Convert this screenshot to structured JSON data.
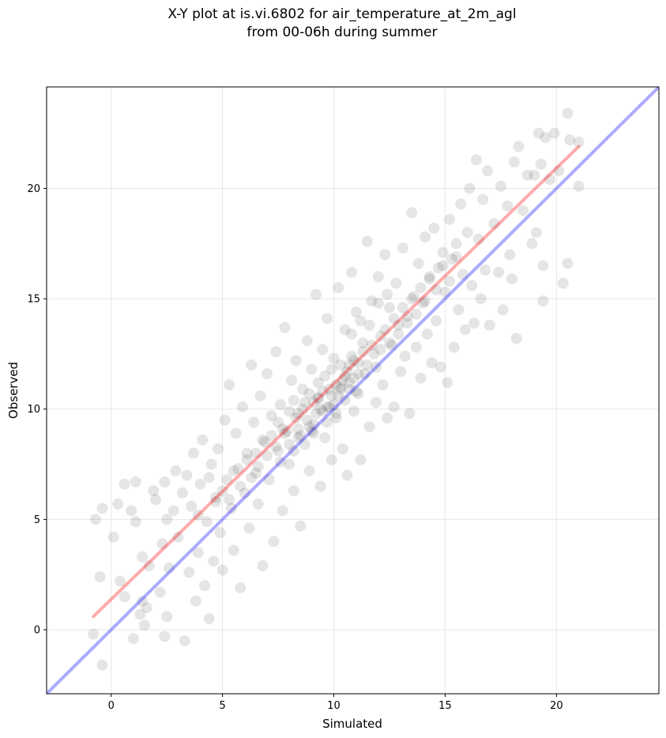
{
  "chart_data": {
    "type": "scatter",
    "title_line1": "X-Y plot at is.vi.6802 for air_temperature_at_2m_agl",
    "title_line2": "from 00-06h during summer",
    "xlabel": "Simulated",
    "ylabel": "Observed",
    "xlim": [
      -2.9,
      24.6
    ],
    "ylim": [
      -2.9,
      24.6
    ],
    "xticks": [
      0,
      5,
      10,
      15,
      20
    ],
    "yticks": [
      0,
      5,
      10,
      15,
      20
    ],
    "grid": true,
    "colors": {
      "points": "#000000",
      "fit_line": "#ff0000",
      "identity_line": "#0000ff"
    },
    "fit_line": {
      "x": [
        -0.8,
        21.0
      ],
      "y": [
        0.6,
        21.9
      ]
    },
    "identity_line": {
      "x": [
        -2.9,
        24.6
      ],
      "y": [
        -2.9,
        24.6
      ]
    },
    "points": [
      [
        -0.8,
        -0.2
      ],
      [
        -0.4,
        -1.6
      ],
      [
        -0.7,
        5.0
      ],
      [
        -0.4,
        5.5
      ],
      [
        -0.5,
        2.4
      ],
      [
        0.1,
        4.2
      ],
      [
        0.3,
        5.7
      ],
      [
        0.4,
        2.2
      ],
      [
        0.6,
        1.5
      ],
      [
        0.6,
        6.6
      ],
      [
        0.9,
        5.4
      ],
      [
        1.0,
        -0.4
      ],
      [
        1.1,
        4.9
      ],
      [
        1.1,
        6.7
      ],
      [
        1.3,
        0.7
      ],
      [
        1.4,
        1.3
      ],
      [
        1.4,
        3.3
      ],
      [
        1.5,
        0.2
      ],
      [
        1.6,
        1.0
      ],
      [
        1.7,
        2.9
      ],
      [
        1.9,
        6.3
      ],
      [
        2.0,
        5.9
      ],
      [
        2.2,
        1.7
      ],
      [
        2.3,
        3.9
      ],
      [
        2.4,
        6.7
      ],
      [
        2.4,
        -0.3
      ],
      [
        2.5,
        5.0
      ],
      [
        2.5,
        0.6
      ],
      [
        2.6,
        2.8
      ],
      [
        2.8,
        5.4
      ],
      [
        2.9,
        7.2
      ],
      [
        3.0,
        4.2
      ],
      [
        3.2,
        6.2
      ],
      [
        3.3,
        -0.5
      ],
      [
        3.4,
        7.0
      ],
      [
        3.5,
        2.6
      ],
      [
        3.6,
        5.6
      ],
      [
        3.7,
        8.0
      ],
      [
        3.8,
        1.3
      ],
      [
        3.9,
        3.5
      ],
      [
        4.0,
        6.6
      ],
      [
        4.1,
        8.6
      ],
      [
        4.2,
        2.0
      ],
      [
        4.3,
        4.9
      ],
      [
        4.4,
        0.5
      ],
      [
        4.5,
        7.5
      ],
      [
        4.6,
        3.1
      ],
      [
        4.7,
        6.0
      ],
      [
        4.8,
        8.2
      ],
      [
        4.9,
        4.4
      ],
      [
        5.0,
        2.7
      ],
      [
        5.1,
        9.5
      ],
      [
        5.2,
        6.8
      ],
      [
        5.3,
        11.1
      ],
      [
        5.4,
        5.5
      ],
      [
        5.5,
        3.6
      ],
      [
        5.6,
        8.9
      ],
      [
        5.7,
        7.3
      ],
      [
        5.8,
        1.9
      ],
      [
        5.9,
        10.1
      ],
      [
        6.0,
        6.2
      ],
      [
        6.1,
        8.0
      ],
      [
        6.2,
        4.6
      ],
      [
        6.3,
        12.0
      ],
      [
        6.4,
        9.4
      ],
      [
        6.5,
        7.1
      ],
      [
        6.6,
        5.7
      ],
      [
        6.7,
        10.6
      ],
      [
        6.8,
        2.9
      ],
      [
        6.9,
        8.5
      ],
      [
        7.0,
        11.6
      ],
      [
        7.1,
        6.8
      ],
      [
        7.2,
        9.7
      ],
      [
        7.3,
        4.0
      ],
      [
        7.4,
        12.6
      ],
      [
        7.5,
        8.1
      ],
      [
        7.6,
        10.2
      ],
      [
        7.7,
        5.4
      ],
      [
        7.8,
        13.7
      ],
      [
        7.9,
        9.0
      ],
      [
        8.0,
        7.5
      ],
      [
        8.1,
        11.3
      ],
      [
        8.2,
        6.3
      ],
      [
        8.3,
        12.2
      ],
      [
        8.4,
        9.8
      ],
      [
        8.5,
        4.7
      ],
      [
        8.6,
        10.9
      ],
      [
        8.7,
        8.4
      ],
      [
        8.8,
        13.1
      ],
      [
        8.9,
        7.2
      ],
      [
        9.0,
        11.8
      ],
      [
        9.1,
        9.3
      ],
      [
        9.2,
        15.2
      ],
      [
        9.3,
        10.5
      ],
      [
        9.4,
        6.5
      ],
      [
        9.5,
        12.7
      ],
      [
        9.6,
        8.7
      ],
      [
        9.7,
        14.1
      ],
      [
        9.8,
        10.1
      ],
      [
        9.9,
        7.7
      ],
      [
        10.0,
        12.3
      ],
      [
        10.1,
        9.6
      ],
      [
        10.2,
        15.5
      ],
      [
        10.3,
        11.0
      ],
      [
        10.4,
        8.2
      ],
      [
        10.5,
        13.6
      ],
      [
        10.6,
        7.0
      ],
      [
        10.7,
        12.0
      ],
      [
        10.8,
        16.2
      ],
      [
        10.9,
        9.9
      ],
      [
        11.0,
        14.4
      ],
      [
        11.1,
        10.7
      ],
      [
        11.2,
        7.7
      ],
      [
        11.3,
        13.0
      ],
      [
        11.4,
        11.6
      ],
      [
        11.5,
        17.6
      ],
      [
        11.6,
        9.2
      ],
      [
        11.7,
        14.9
      ],
      [
        11.8,
        12.5
      ],
      [
        11.9,
        10.3
      ],
      [
        12.0,
        16.0
      ],
      [
        12.1,
        13.3
      ],
      [
        12.2,
        11.1
      ],
      [
        12.3,
        17.0
      ],
      [
        12.4,
        9.6
      ],
      [
        12.5,
        14.6
      ],
      [
        12.6,
        12.9
      ],
      [
        12.7,
        10.1
      ],
      [
        12.8,
        15.7
      ],
      [
        12.9,
        13.8
      ],
      [
        13.0,
        11.7
      ],
      [
        13.1,
        17.3
      ],
      [
        13.2,
        12.4
      ],
      [
        13.3,
        14.2
      ],
      [
        13.4,
        9.8
      ],
      [
        13.5,
        18.9
      ],
      [
        13.6,
        15.1
      ],
      [
        13.7,
        12.8
      ],
      [
        13.8,
        16.6
      ],
      [
        13.9,
        11.4
      ],
      [
        14.0,
        14.8
      ],
      [
        14.1,
        17.8
      ],
      [
        14.2,
        13.4
      ],
      [
        14.3,
        15.9
      ],
      [
        14.4,
        12.1
      ],
      [
        14.5,
        18.2
      ],
      [
        14.6,
        14.0
      ],
      [
        14.7,
        16.4
      ],
      [
        14.8,
        11.9
      ],
      [
        14.9,
        17.1
      ],
      [
        15.0,
        15.3
      ],
      [
        15.1,
        11.2
      ],
      [
        15.2,
        18.6
      ],
      [
        15.3,
        16.8
      ],
      [
        15.4,
        12.8
      ],
      [
        15.5,
        17.5
      ],
      [
        15.6,
        14.5
      ],
      [
        15.7,
        19.3
      ],
      [
        15.8,
        16.1
      ],
      [
        15.9,
        13.6
      ],
      [
        16.0,
        18.0
      ],
      [
        16.1,
        20.0
      ],
      [
        16.2,
        15.6
      ],
      [
        16.3,
        13.9
      ],
      [
        16.4,
        21.3
      ],
      [
        16.5,
        17.7
      ],
      [
        16.6,
        15.0
      ],
      [
        16.7,
        19.5
      ],
      [
        16.8,
        16.3
      ],
      [
        16.9,
        20.8
      ],
      [
        17.0,
        13.8
      ],
      [
        17.2,
        18.4
      ],
      [
        17.4,
        16.2
      ],
      [
        17.5,
        20.1
      ],
      [
        17.6,
        14.5
      ],
      [
        17.8,
        19.2
      ],
      [
        17.9,
        17.0
      ],
      [
        18.0,
        15.9
      ],
      [
        18.1,
        21.2
      ],
      [
        18.2,
        13.2
      ],
      [
        18.3,
        21.9
      ],
      [
        18.5,
        19.0
      ],
      [
        18.7,
        20.6
      ],
      [
        18.9,
        17.5
      ],
      [
        19.0,
        20.6
      ],
      [
        19.1,
        18.0
      ],
      [
        19.2,
        22.5
      ],
      [
        19.4,
        14.9
      ],
      [
        19.4,
        16.5
      ],
      [
        19.5,
        22.3
      ],
      [
        19.7,
        20.4
      ],
      [
        19.9,
        22.5
      ],
      [
        20.1,
        20.8
      ],
      [
        20.3,
        15.7
      ],
      [
        20.5,
        16.6
      ],
      [
        20.6,
        22.2
      ],
      [
        20.5,
        23.4
      ],
      [
        21.0,
        22.1
      ],
      [
        21.0,
        20.1
      ],
      [
        19.3,
        21.1
      ],
      [
        7.5,
        9.4
      ],
      [
        7.7,
        9.1
      ],
      [
        8.0,
        9.9
      ],
      [
        8.2,
        10.4
      ],
      [
        8.4,
        9.1
      ],
      [
        8.6,
        10.0
      ],
      [
        8.8,
        9.5
      ],
      [
        8.9,
        10.7
      ],
      [
        9.0,
        9.0
      ],
      [
        9.1,
        10.3
      ],
      [
        9.2,
        9.8
      ],
      [
        9.3,
        11.2
      ],
      [
        9.4,
        10.0
      ],
      [
        9.5,
        10.8
      ],
      [
        9.6,
        11.5
      ],
      [
        9.7,
        9.4
      ],
      [
        9.8,
        10.9
      ],
      [
        9.9,
        11.8
      ],
      [
        10.0,
        10.2
      ],
      [
        10.1,
        11.1
      ],
      [
        10.2,
        10.6
      ],
      [
        10.3,
        12.0
      ],
      [
        10.4,
        11.3
      ],
      [
        10.5,
        10.4
      ],
      [
        10.6,
        11.7
      ],
      [
        10.7,
        10.9
      ],
      [
        10.8,
        12.4
      ],
      [
        10.9,
        11.4
      ],
      [
        11.0,
        10.8
      ],
      [
        11.1,
        12.1
      ],
      [
        8.3,
        9.6
      ],
      [
        8.5,
        8.8
      ],
      [
        8.7,
        10.3
      ],
      [
        8.9,
        9.2
      ],
      [
        9.1,
        8.9
      ],
      [
        9.3,
        10.5
      ],
      [
        9.5,
        9.9
      ],
      [
        9.7,
        10.1
      ],
      [
        9.9,
        10.6
      ],
      [
        10.1,
        9.8
      ],
      [
        10.3,
        10.9
      ],
      [
        10.5,
        11.5
      ],
      [
        10.7,
        11.2
      ],
      [
        10.9,
        12.2
      ],
      [
        11.1,
        11.6
      ],
      [
        11.3,
        12.6
      ],
      [
        11.5,
        12.0
      ],
      [
        11.7,
        12.9
      ],
      [
        11.9,
        11.9
      ],
      [
        12.1,
        12.7
      ],
      [
        6.5,
        8.0
      ],
      [
        6.8,
        8.6
      ],
      [
        7.0,
        7.9
      ],
      [
        7.2,
        8.8
      ],
      [
        7.4,
        8.3
      ],
      [
        7.6,
        7.6
      ],
      [
        7.8,
        8.9
      ],
      [
        8.0,
        8.4
      ],
      [
        8.2,
        8.1
      ],
      [
        8.4,
        8.7
      ],
      [
        12.3,
        13.6
      ],
      [
        12.5,
        13.0
      ],
      [
        12.7,
        14.1
      ],
      [
        12.9,
        13.4
      ],
      [
        13.1,
        14.6
      ],
      [
        13.3,
        13.9
      ],
      [
        13.5,
        15.0
      ],
      [
        13.7,
        14.3
      ],
      [
        13.9,
        15.5
      ],
      [
        14.1,
        14.9
      ],
      [
        5.5,
        7.2
      ],
      [
        5.8,
        6.5
      ],
      [
        6.1,
        7.7
      ],
      [
        6.3,
        6.9
      ],
      [
        6.6,
        7.4
      ],
      [
        4.7,
        5.8
      ],
      [
        5.0,
        6.3
      ],
      [
        5.3,
        5.9
      ],
      [
        4.4,
        6.9
      ],
      [
        3.9,
        5.2
      ],
      [
        14.3,
        16.0
      ],
      [
        14.6,
        15.4
      ],
      [
        14.9,
        16.5
      ],
      [
        15.2,
        15.8
      ],
      [
        15.5,
        16.9
      ],
      [
        12.0,
        14.8
      ],
      [
        12.4,
        15.2
      ],
      [
        11.6,
        13.8
      ],
      [
        11.2,
        14.0
      ],
      [
        10.8,
        13.4
      ]
    ]
  }
}
